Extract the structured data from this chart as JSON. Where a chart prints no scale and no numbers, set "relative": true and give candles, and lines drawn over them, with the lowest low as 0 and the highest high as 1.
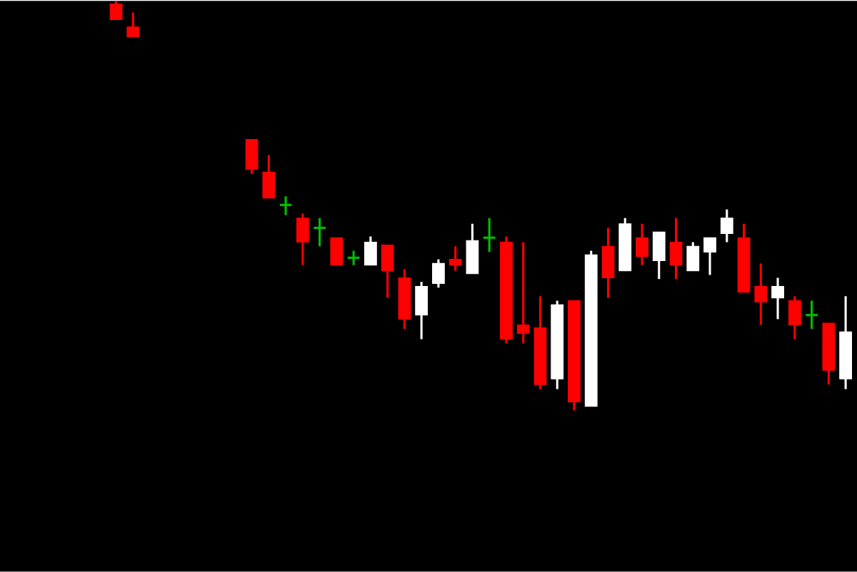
{
  "chart_data": {
    "type": "candlestick",
    "relative": true,
    "categories": [
      null,
      null,
      null,
      null,
      null,
      null,
      null,
      null,
      null,
      null,
      null,
      null,
      null,
      null,
      null,
      null,
      null,
      null,
      null,
      null,
      null,
      null,
      null,
      null,
      null,
      null,
      null,
      null,
      null,
      null,
      null,
      null,
      null,
      null,
      null,
      null,
      null,
      null,
      null,
      null,
      null,
      null,
      null,
      null,
      null,
      null,
      null,
      null,
      null,
      null
    ],
    "ohlc": [
      null,
      null,
      null,
      null,
      null,
      null,
      [
        0.993,
        1,
        0.955,
        0.955
      ],
      [
        0.937,
        0.972,
        0.913,
        0.913
      ],
      null,
      null,
      null,
      null,
      null,
      null,
      [
        0.662,
        0.662,
        0.578,
        0.589
      ],
      [
        0.582,
        0.624,
        0.519,
        0.519
      ],
      [
        0.502,
        0.523,
        0.477,
        0.502
      ],
      [
        0.47,
        0.481,
        0.355,
        0.411
      ],
      [
        0.446,
        0.47,
        0.401,
        0.446
      ],
      [
        0.422,
        0.422,
        0.355,
        0.355
      ],
      [
        0.373,
        0.39,
        0.355,
        0.373
      ],
      [
        0.355,
        0.425,
        0.355,
        0.411
      ],
      [
        0.404,
        0.404,
        0.275,
        0.341
      ],
      [
        0.324,
        0.345,
        0.199,
        0.223
      ],
      [
        0.233,
        0.314,
        0.174,
        0.303
      ],
      [
        0.31,
        0.369,
        0.3,
        0.359
      ],
      [
        0.369,
        0.401,
        0.341,
        0.355
      ],
      [
        0.334,
        0.456,
        0.334,
        0.415
      ],
      [
        0.422,
        0.47,
        0.387,
        0.422
      ],
      [
        0.411,
        0.425,
        0.164,
        0.174
      ],
      [
        0.209,
        0.411,
        0.164,
        0.188
      ],
      [
        0.202,
        0.279,
        0.052,
        0.063
      ],
      [
        0.077,
        0.268,
        0.052,
        0.258
      ],
      [
        0.268,
        0.268,
        0,
        0.021
      ],
      [
        0.01,
        0.39,
        0.01,
        0.38
      ],
      [
        0.401,
        0.446,
        0.275,
        0.324
      ],
      [
        0.341,
        0.47,
        0.341,
        0.456
      ],
      [
        0.422,
        0.456,
        0.355,
        0.376
      ],
      [
        0.366,
        0.436,
        0.321,
        0.436
      ],
      [
        0.411,
        0.47,
        0.321,
        0.355
      ],
      [
        0.341,
        0.411,
        0.341,
        0.401
      ],
      [
        0.387,
        0.422,
        0.331,
        0.422
      ],
      [
        0.432,
        0.491,
        0.411,
        0.47
      ],
      [
        0.422,
        0.456,
        0.289,
        0.289
      ],
      [
        0.303,
        0.359,
        0.209,
        0.265
      ],
      [
        0.275,
        0.324,
        0.223,
        0.303
      ],
      [
        0.268,
        0.279,
        0.174,
        0.209
      ],
      [
        0.233,
        0.268,
        0.199,
        0.233
      ],
      [
        0.213,
        0.213,
        0.063,
        0.098
      ],
      [
        0.077,
        0.279,
        0.052,
        0.192
      ]
    ],
    "colors": [
      "#ffffff",
      "#ff0000",
      "#ffffff",
      "#ffffff",
      "#ffffff",
      "#ffffff",
      "#ff0000",
      "#ff0000",
      "#ff0000",
      "#ff0000",
      "#ffffff",
      "#ff0000",
      "#ff0000",
      "#ff0000",
      "#ff0000",
      "#ff0000",
      "#00c000",
      "#ff0000",
      "#00c000",
      "#ff0000",
      "#00c000",
      "#ffffff",
      "#ff0000",
      "#ff0000",
      "#ffffff",
      "#ffffff",
      "#ff0000",
      "#ffffff",
      "#00c000",
      "#ff0000",
      "#ff0000",
      "#ff0000",
      "#ffffff",
      "#ff0000",
      "#ffffff",
      "#ff0000",
      "#ffffff",
      "#ff0000",
      "#ffffff",
      "#ff0000",
      "#ffffff",
      "#ffffff",
      "#ffffff",
      "#ff0000",
      "#ff0000",
      "#ffffff",
      "#ff0000",
      "#00c000",
      "#ff0000",
      "#ffffff"
    ]
  }
}
